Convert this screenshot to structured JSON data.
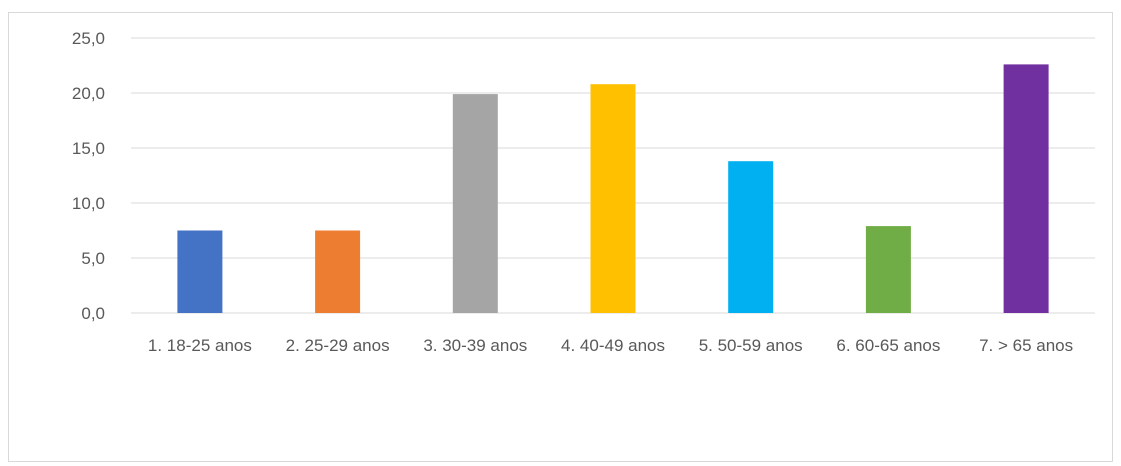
{
  "chart_data": {
    "type": "bar",
    "title": "",
    "xlabel": "",
    "ylabel": "",
    "categories": [
      "1. 18-25 anos",
      "2. 25-29 anos",
      "3. 30-39 anos",
      "4. 40-49 anos",
      "5. 50-59 anos",
      "6. 60-65 anos",
      "7. > 65 anos"
    ],
    "values": [
      7.5,
      7.5,
      19.9,
      20.8,
      13.8,
      7.9,
      22.6
    ],
    "colors": [
      "#4472C4",
      "#ED7D31",
      "#A5A5A5",
      "#FFC000",
      "#00B0F0",
      "#70AD47",
      "#7030A0"
    ],
    "ylim": [
      0,
      25
    ],
    "yticks": [
      "0,0",
      "5,0",
      "10,0",
      "15,0",
      "20,0",
      "25,0"
    ],
    "grid": true,
    "legend": "none"
  }
}
